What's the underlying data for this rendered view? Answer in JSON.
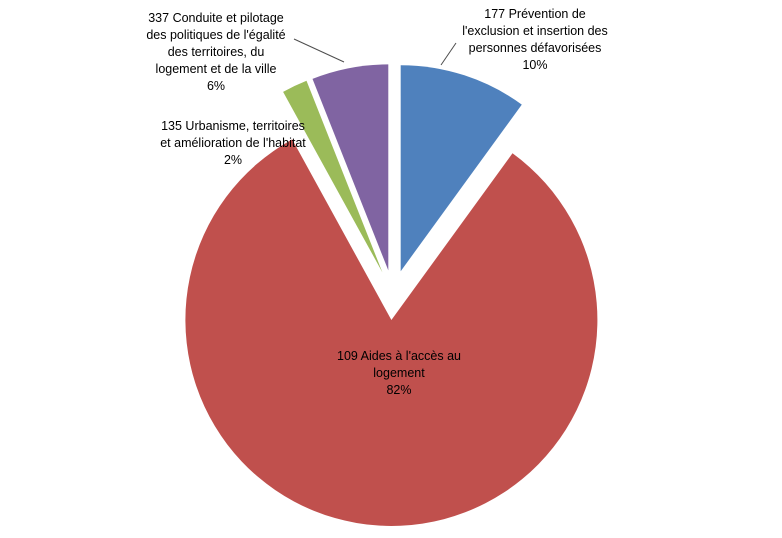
{
  "chart_data": {
    "type": "pie",
    "title": "",
    "exploded": true,
    "start_angle_deg": 0,
    "direction": "clockwise",
    "legend": "none",
    "background_color": "#ffffff",
    "slices": [
      {
        "name": "prevention-exclusion",
        "label": "177 Prévention de l'exclusion et insertion des personnes défavorisées",
        "percent": 10,
        "percent_label": "10%",
        "color": "#4f81bd",
        "callout": "177 Prévention de\nl'exclusion et insertion des\npersonnes défavorisées\n10%"
      },
      {
        "name": "aides-acces-logement",
        "label": "109 Aides à l'accès au logement",
        "percent": 82,
        "percent_label": "82%",
        "color": "#c0504d",
        "callout": "109 Aides à l'accès au\nlogement\n82%"
      },
      {
        "name": "urbanisme-territoires",
        "label": "135 Urbanisme, territoires et amélioration de l'habitat",
        "percent": 2,
        "percent_label": "2%",
        "color": "#9bbb59",
        "callout": "135 Urbanisme, territoires\net amélioration de l'habitat\n2%"
      },
      {
        "name": "conduite-pilotage",
        "label": "337 Conduite et pilotage des politiques de l'égalité des territoires, du logement et de la ville",
        "percent": 6,
        "percent_label": "6%",
        "color": "#8064a2",
        "callout": "337 Conduite et pilotage\ndes politiques de l'égalité\ndes territoires, du\nlogement et de la ville\n6%"
      }
    ]
  }
}
